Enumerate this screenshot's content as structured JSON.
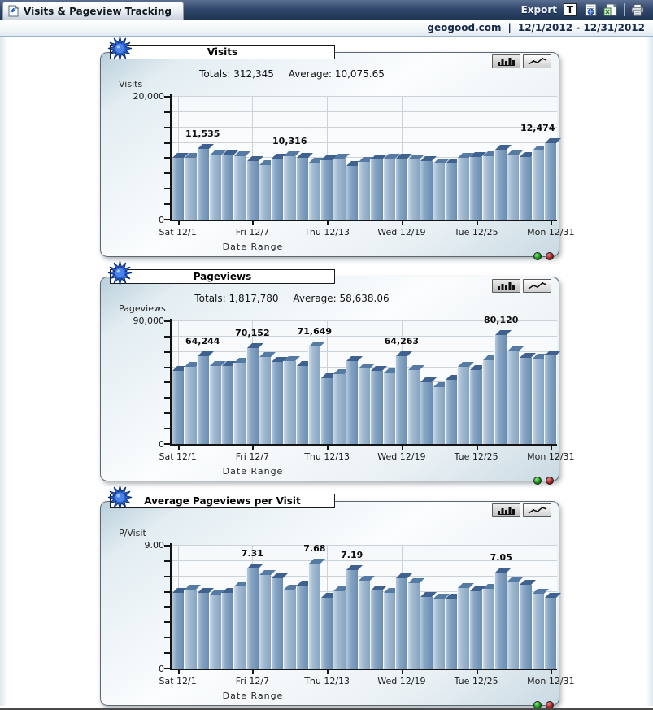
{
  "window": {
    "tab_title": "Visits & Pageview Tracking",
    "export_label": "Export",
    "export_t_glyph": "T",
    "site_label": "geogood.com",
    "separator": "|",
    "date_range": "12/1/2012 - 12/31/2012"
  },
  "colors": {
    "header_navy": "#2c4468",
    "subheader_rule_blue": "#96b4d2",
    "bar_front_dark": "#6a8db1",
    "bar_front_light": "#86a4c2",
    "bar_top_face": "#3e6190",
    "status_green": "#129212",
    "status_red": "#a32222",
    "panel_tint": "#d9e6ec"
  },
  "charts": [
    {
      "title": "Visits",
      "totals_text": "Totals: 312,345",
      "average_text": "Average: 10,075.65",
      "y_axis_title": "Visits",
      "y_max_label": "20,000",
      "y_min_label": "0",
      "x_axis_title": "Date Range",
      "buttons": {
        "bar_view": "bar-chart-view",
        "line_view": "line-chart-view"
      },
      "chart_data": {
        "type": "bar",
        "title": "Visits",
        "xlabel": "Date Range",
        "ylabel": "Visits",
        "ylim": [
          0,
          20000
        ],
        "y_divisions": 8,
        "grid": true,
        "x": [
          "12/1",
          "12/2",
          "12/3",
          "12/4",
          "12/5",
          "12/6",
          "12/7",
          "12/8",
          "12/9",
          "12/10",
          "12/11",
          "12/12",
          "12/13",
          "12/14",
          "12/15",
          "12/16",
          "12/17",
          "12/18",
          "12/19",
          "12/20",
          "12/21",
          "12/22",
          "12/23",
          "12/24",
          "12/25",
          "12/26",
          "12/27",
          "12/28",
          "12/29",
          "12/30",
          "12/31"
        ],
        "values": [
          10050,
          10000,
          11535,
          10500,
          10400,
          10300,
          9600,
          8900,
          9900,
          10316,
          10100,
          9330,
          9700,
          9970,
          8700,
          9370,
          9800,
          9900,
          9900,
          9800,
          9600,
          9100,
          9200,
          10000,
          10200,
          10340,
          11360,
          10600,
          10200,
          11200,
          12474
        ],
        "point_labels": [
          {
            "index": 2,
            "text": "11,535"
          },
          {
            "index": 9,
            "text": "10,316"
          },
          {
            "index": 30,
            "text": "12,474",
            "align": "right"
          }
        ],
        "x_ticks": [
          {
            "index": 0,
            "label": "Sat 12/1"
          },
          {
            "index": 6,
            "label": "Fri 12/7"
          },
          {
            "index": 12,
            "label": "Thu 12/13"
          },
          {
            "index": 18,
            "label": "Wed 12/19"
          },
          {
            "index": 24,
            "label": "Tue 12/25"
          },
          {
            "index": 30,
            "label": "Mon 12/31"
          }
        ]
      }
    },
    {
      "title": "Pageviews",
      "totals_text": "Totals: 1,817,780",
      "average_text": "Average: 58,638.06",
      "y_axis_title": "Pageviews",
      "y_max_label": "90,000",
      "y_min_label": "0",
      "x_axis_title": "Date Range",
      "buttons": {
        "bar_view": "bar-chart-view",
        "line_view": "line-chart-view"
      },
      "chart_data": {
        "type": "bar",
        "title": "Pageviews",
        "xlabel": "Date Range",
        "ylabel": "Pageviews",
        "ylim": [
          0,
          90000
        ],
        "y_divisions": 8,
        "grid": true,
        "x": [
          "12/1",
          "12/2",
          "12/3",
          "12/4",
          "12/5",
          "12/6",
          "12/7",
          "12/8",
          "12/9",
          "12/10",
          "12/11",
          "12/12",
          "12/13",
          "12/14",
          "12/15",
          "12/16",
          "12/17",
          "12/18",
          "12/19",
          "12/20",
          "12/21",
          "12/22",
          "12/23",
          "12/24",
          "12/25",
          "12/26",
          "12/27",
          "12/28",
          "12/29",
          "12/30",
          "12/31"
        ],
        "values": [
          53500,
          56500,
          64244,
          57000,
          57000,
          59500,
          70152,
          64000,
          60000,
          61000,
          57500,
          71649,
          48500,
          51500,
          60500,
          55500,
          53500,
          52000,
          64263,
          54000,
          45500,
          42000,
          47000,
          56500,
          54500,
          61500,
          80120,
          68000,
          63000,
          62800,
          65052
        ],
        "point_labels": [
          {
            "index": 2,
            "text": "64,244"
          },
          {
            "index": 6,
            "text": "70,152"
          },
          {
            "index": 11,
            "text": "71,649"
          },
          {
            "index": 18,
            "text": "64,263"
          },
          {
            "index": 26,
            "text": "80,120"
          }
        ],
        "x_ticks": [
          {
            "index": 0,
            "label": "Sat 12/1"
          },
          {
            "index": 6,
            "label": "Fri 12/7"
          },
          {
            "index": 12,
            "label": "Thu 12/13"
          },
          {
            "index": 18,
            "label": "Wed 12/19"
          },
          {
            "index": 24,
            "label": "Tue 12/25"
          },
          {
            "index": 30,
            "label": "Mon 12/31"
          }
        ]
      }
    },
    {
      "title": "Average Pageviews per Visit",
      "totals_text": "",
      "average_text": "",
      "y_axis_title": "P/Visit",
      "y_max_label": "9.00",
      "y_min_label": "0",
      "x_axis_title": "Date Range",
      "buttons": {
        "bar_view": "bar-chart-view",
        "line_view": "line-chart-view"
      },
      "chart_data": {
        "type": "bar",
        "title": "Average Pageviews per Visit",
        "xlabel": "Date Range",
        "ylabel": "P/Visit",
        "ylim": [
          0,
          9
        ],
        "y_divisions": 8,
        "grid": true,
        "x": [
          "12/1",
          "12/2",
          "12/3",
          "12/4",
          "12/5",
          "12/6",
          "12/7",
          "12/8",
          "12/9",
          "12/10",
          "12/11",
          "12/12",
          "12/13",
          "12/14",
          "12/15",
          "12/16",
          "12/17",
          "12/18",
          "12/19",
          "12/20",
          "12/21",
          "12/22",
          "12/23",
          "12/24",
          "12/25",
          "12/26",
          "12/27",
          "12/28",
          "12/29",
          "12/30",
          "12/31"
        ],
        "values": [
          5.55,
          5.8,
          5.57,
          5.45,
          5.55,
          6.0,
          7.31,
          6.85,
          6.6,
          5.8,
          6.1,
          7.68,
          5.2,
          5.65,
          7.19,
          6.45,
          5.7,
          5.55,
          6.6,
          6.25,
          5.25,
          5.1,
          5.15,
          5.9,
          5.65,
          5.85,
          7.05,
          6.4,
          6.15,
          5.5,
          5.2
        ],
        "point_labels": [
          {
            "index": 6,
            "text": "7.31"
          },
          {
            "index": 11,
            "text": "7.68"
          },
          {
            "index": 14,
            "text": "7.19"
          },
          {
            "index": 26,
            "text": "7.05"
          }
        ],
        "x_ticks": [
          {
            "index": 0,
            "label": "Sat 12/1"
          },
          {
            "index": 6,
            "label": "Fri 12/7"
          },
          {
            "index": 12,
            "label": "Thu 12/13"
          },
          {
            "index": 18,
            "label": "Wed 12/19"
          },
          {
            "index": 24,
            "label": "Tue 12/25"
          },
          {
            "index": 30,
            "label": "Mon 12/31"
          }
        ]
      }
    }
  ],
  "chart_data": [
    {
      "type": "bar",
      "title": "Visits",
      "ylim": [
        0,
        20000
      ],
      "values_ref": "charts.0.chart_data"
    },
    {
      "type": "bar",
      "title": "Pageviews",
      "ylim": [
        0,
        90000
      ],
      "values_ref": "charts.1.chart_data"
    },
    {
      "type": "bar",
      "title": "Average Pageviews per Visit",
      "ylim": [
        0,
        9
      ],
      "values_ref": "charts.2.chart_data"
    }
  ]
}
